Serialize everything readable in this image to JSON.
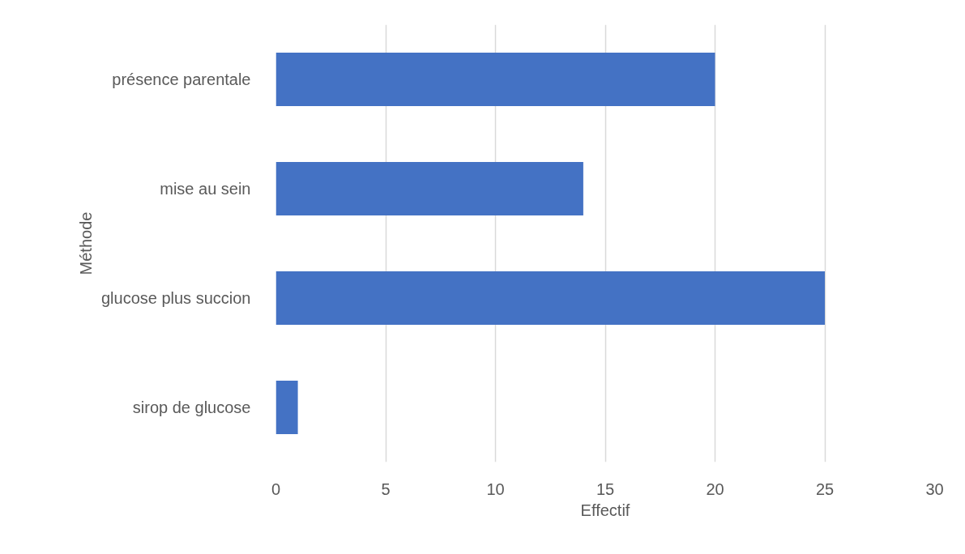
{
  "chart_data": {
    "type": "bar",
    "orientation": "horizontal",
    "xlabel": "Effectif",
    "ylabel": "Méthode",
    "categories": [
      "présence parentale",
      "mise au sein",
      "glucose plus succion",
      "sirop de glucose"
    ],
    "values": [
      20,
      14,
      25,
      1
    ],
    "color": "#4472c4",
    "xlim": [
      0,
      30
    ],
    "xticks": [
      0,
      5,
      10,
      15,
      20,
      25,
      30
    ],
    "grid": "x"
  }
}
